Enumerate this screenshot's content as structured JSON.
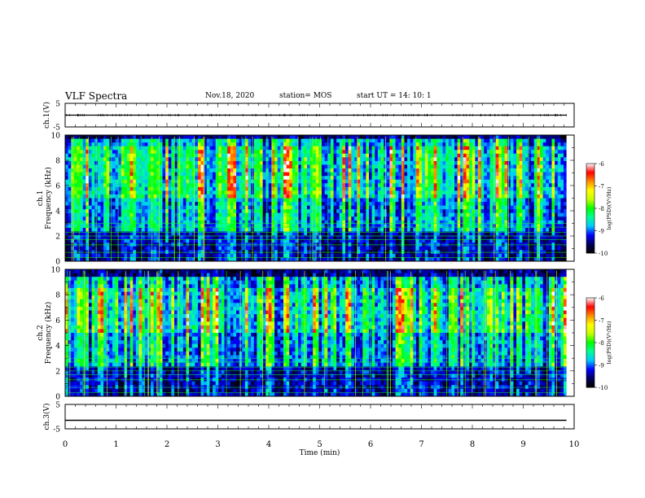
{
  "header": {
    "title": "VLF Spectra",
    "date": "Nov.18, 2020",
    "station": "station= MOS",
    "start_ut": "start UT =  14: 10: 1"
  },
  "chart_data": [
    {
      "type": "line",
      "panel": "ch.1(V)",
      "ylabel": "ch.1(V)",
      "ylim": [
        -5,
        5
      ],
      "yticks": [
        "5",
        "-5"
      ],
      "xlim": [
        0,
        10
      ],
      "series": [
        {
          "x": [
            0,
            9.85
          ],
          "y": [
            0,
            0
          ]
        }
      ],
      "grid": false
    },
    {
      "type": "heatmap",
      "panel": "ch.1",
      "ylabel": "ch.1 Frequency (kHz)",
      "ylim": [
        0,
        10
      ],
      "yticks": [
        "0",
        "2",
        "4",
        "6",
        "8",
        "10"
      ],
      "xlim": [
        0,
        10
      ],
      "data_x_end": 9.85,
      "z_range": [
        -10,
        -6
      ],
      "colorbar_ticks": [
        "-6",
        "-7",
        "-8",
        "-9",
        "-10"
      ],
      "colorbar_label": "log(PSD)(V²/Hz)",
      "intense_band_khz": [
        5.0,
        9.0
      ]
    },
    {
      "type": "heatmap",
      "panel": "ch.2",
      "ylabel": "ch.2 Frequency (kHz)",
      "ylim": [
        0,
        10
      ],
      "yticks": [
        "0",
        "2",
        "4",
        "6",
        "8",
        "10"
      ],
      "xlim": [
        0,
        10
      ],
      "data_x_end": 9.85,
      "z_range": [
        -10,
        -6
      ],
      "colorbar_ticks": [
        "-6",
        "-7",
        "-8",
        "-9",
        "-10"
      ],
      "colorbar_label": "log(PSD)(V²/Hz)",
      "intense_band_khz": [
        5.0,
        8.5
      ]
    },
    {
      "type": "line",
      "panel": "ch.3(V)",
      "ylabel": "ch.3(V)",
      "ylim": [
        -5,
        5
      ],
      "yticks": [
        "5",
        "-5"
      ],
      "xlim": [
        0,
        10
      ],
      "series": [
        {
          "x": [
            0,
            9.85
          ],
          "y": [
            -1.5,
            -1.5
          ]
        }
      ],
      "grid": false
    }
  ],
  "x_axis": {
    "label": "Time (min)",
    "ticks": [
      "0",
      "1",
      "2",
      "3",
      "4",
      "5",
      "6",
      "7",
      "8",
      "9",
      "10"
    ]
  },
  "colors": {
    "cmap": [
      "#000000",
      "#00005a",
      "#0000ff",
      "#00c8ff",
      "#00ff96",
      "#00ff00",
      "#c8ff00",
      "#ffff00",
      "#ff8c00",
      "#ff0000",
      "#ffffff"
    ]
  }
}
